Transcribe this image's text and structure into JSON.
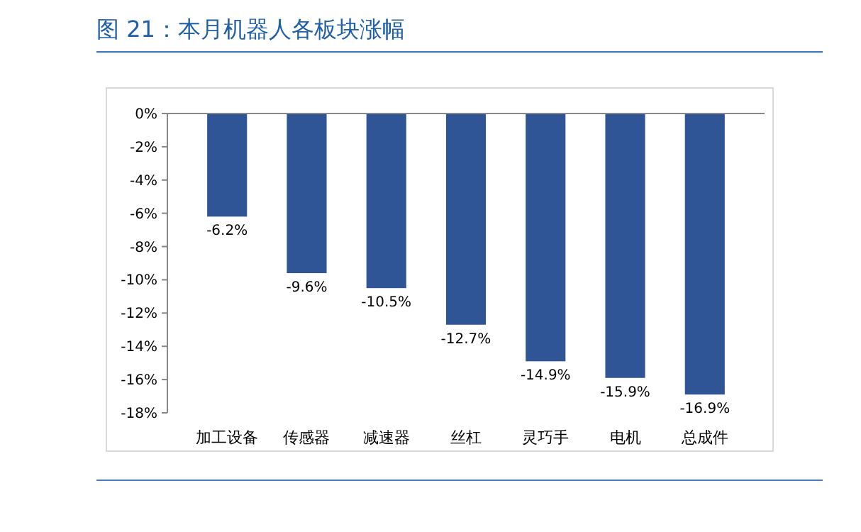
{
  "chart_data": {
    "type": "bar",
    "title": "图 21：本月机器人各板块涨幅",
    "categories": [
      "加工设备",
      "传感器",
      "减速器",
      "丝杠",
      "灵巧手",
      "电机",
      "总成件"
    ],
    "series": [
      {
        "color": "#2f5597",
        "values": [
          -6.2,
          -9.6,
          -10.5,
          -12.7,
          -14.9,
          -15.9,
          -16.9
        ]
      }
    ],
    "value_labels": [
      "-6.2%",
      "-9.6%",
      "-10.5%",
      "-12.7%",
      "-14.9%",
      "-15.9%",
      "-16.9%"
    ],
    "ylim": [
      -18,
      0
    ],
    "yticks": [
      {
        "value": 0,
        "label": "0%"
      },
      {
        "value": -2,
        "label": "-2%"
      },
      {
        "value": -4,
        "label": "-4%"
      },
      {
        "value": -6,
        "label": "-6%"
      },
      {
        "value": -8,
        "label": "-8%"
      },
      {
        "value": -10,
        "label": "-10%"
      },
      {
        "value": -12,
        "label": "-12%"
      },
      {
        "value": -14,
        "label": "-14%"
      },
      {
        "value": -16,
        "label": "-16%"
      },
      {
        "value": -18,
        "label": "-18%"
      }
    ],
    "grid": false
  }
}
